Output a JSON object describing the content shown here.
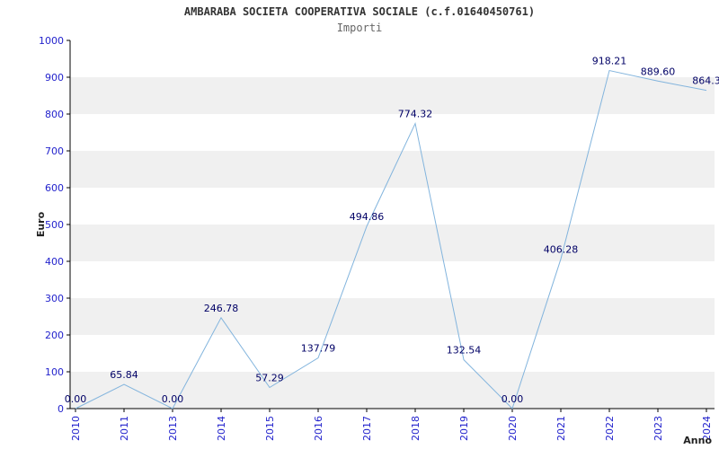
{
  "header": {
    "title": "AMBARABA SOCIETA COOPERATIVA SOCIALE (c.f.01640450761)",
    "subtitle": "Importi"
  },
  "chart_data": {
    "type": "line",
    "title": "AMBARABA SOCIETA COOPERATIVA SOCIALE (c.f.01640450761)",
    "subtitle": "Importi",
    "xlabel": "Anno",
    "ylabel": "Euro",
    "categories": [
      "2010",
      "2011",
      "2013",
      "2014",
      "2015",
      "2016",
      "2017",
      "2018",
      "2019",
      "2020",
      "2021",
      "2022",
      "2023",
      "2024"
    ],
    "values": [
      0.0,
      65.84,
      0.0,
      246.78,
      57.29,
      137.79,
      494.86,
      774.32,
      132.54,
      0.0,
      406.28,
      918.21,
      889.6,
      864.3
    ],
    "value_labels": [
      "0.00",
      "65.84",
      "0.00",
      "246.78",
      "57.29",
      "137.79",
      "494.86",
      "774.32",
      "132.54",
      "0.00",
      "406.28",
      "918.21",
      "889.60",
      "864.3"
    ],
    "ylim": [
      0,
      1000
    ],
    "ytick_step": 100,
    "ytick_labels": [
      "0",
      "100",
      "200",
      "300",
      "400",
      "500",
      "600",
      "700",
      "800",
      "900",
      "1000"
    ],
    "grid": "banded",
    "legend": "none",
    "colors": {
      "line": "#82b4dd",
      "band": "#f0f0f0",
      "axis": "#000000",
      "tick_label": "#2222cc",
      "value_label": "#000066",
      "title": "#333333",
      "subtitle": "#666666"
    }
  }
}
